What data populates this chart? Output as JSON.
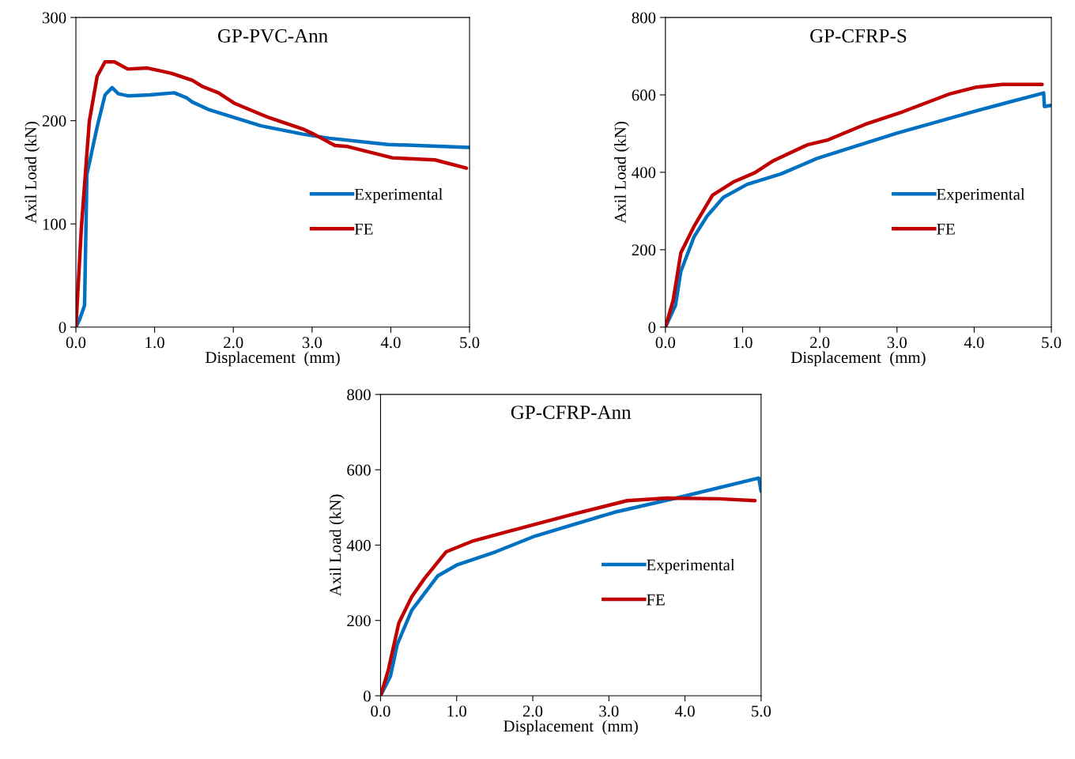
{
  "chart_data": [
    {
      "type": "line",
      "title": "GP-PVC-Ann",
      "xlabel": "Displacement  (mm)",
      "ylabel": "Axil Load (kN)",
      "xlim": [
        0,
        5
      ],
      "ylim": [
        0,
        300
      ],
      "xticks": [
        {
          "value": 0,
          "label": "0.0"
        },
        {
          "value": 1,
          "label": "1.0"
        },
        {
          "value": 2,
          "label": "2.0"
        },
        {
          "value": 3,
          "label": "3.0"
        },
        {
          "value": 4,
          "label": "4.0"
        },
        {
          "value": 5,
          "label": "5.0"
        }
      ],
      "yticks": [
        0,
        100,
        200,
        300
      ],
      "grid": false,
      "legend": "lower right",
      "marker": "none",
      "line_style": "solid",
      "series": [
        {
          "name": "Experimental",
          "color": "#0070c0",
          "x": [
            0,
            0.05,
            0.11,
            0.14,
            0.27,
            0.37,
            0.46,
            0.54,
            0.67,
            0.94,
            1.25,
            1.41,
            1.48,
            1.68,
            2.01,
            2.35,
            2.88,
            3.22,
            3.96,
            5.0
          ],
          "values": [
            0,
            8,
            21,
            148,
            194,
            225,
            232,
            226,
            224,
            225,
            227,
            222,
            218,
            211,
            203,
            195,
            187,
            183,
            177,
            174
          ]
        },
        {
          "name": "FE",
          "color": "#c00000",
          "x": [
            0,
            0.07,
            0.17,
            0.27,
            0.37,
            0.49,
            0.66,
            0.91,
            1.21,
            1.48,
            1.61,
            1.81,
            2.01,
            2.45,
            2.88,
            3.02,
            3.29,
            3.45,
            4.02,
            4.56,
            4.96
          ],
          "values": [
            0,
            97,
            199,
            243,
            257,
            257,
            250,
            251,
            246,
            239,
            233,
            227,
            217,
            203,
            192,
            187,
            176,
            175,
            164,
            162,
            154
          ]
        }
      ]
    },
    {
      "type": "line",
      "title": "GP-CFRP-S",
      "xlabel": "Displacement  (mm)",
      "ylabel": "Axil Load (kN)",
      "xlim": [
        0,
        5
      ],
      "ylim": [
        0,
        800
      ],
      "xticks": [
        {
          "value": 0,
          "label": "0.0"
        },
        {
          "value": 1,
          "label": "1.0"
        },
        {
          "value": 2,
          "label": "2.0"
        },
        {
          "value": 3,
          "label": "3.0"
        },
        {
          "value": 4,
          "label": "4.0"
        },
        {
          "value": 5,
          "label": "5.0"
        }
      ],
      "yticks": [
        0,
        200,
        400,
        600,
        800
      ],
      "grid": false,
      "legend": "lower right",
      "marker": "none",
      "line_style": "solid",
      "series": [
        {
          "name": "Experimental",
          "color": "#0070c0",
          "x": [
            0,
            0.13,
            0.2,
            0.37,
            0.54,
            0.75,
            1.06,
            1.5,
            1.98,
            3.0,
            4.03,
            4.9,
            4.91,
            5.0
          ],
          "values": [
            0,
            56,
            144,
            233,
            287,
            335,
            369,
            396,
            437,
            501,
            559,
            605,
            570,
            573
          ]
        },
        {
          "name": "FE",
          "color": "#c00000",
          "x": [
            0,
            0.1,
            0.2,
            0.37,
            0.61,
            0.89,
            1.16,
            1.4,
            1.84,
            2.11,
            2.59,
            3.07,
            3.69,
            4.03,
            4.37,
            4.88
          ],
          "values": [
            0,
            69,
            192,
            260,
            341,
            376,
            399,
            430,
            471,
            484,
            524,
            556,
            603,
            620,
            627,
            627
          ]
        }
      ]
    },
    {
      "type": "line",
      "title": "GP-CFRP-Ann",
      "xlabel": "Displacement  (mm)",
      "ylabel": "Axil Load (kN)",
      "xlim": [
        0,
        5
      ],
      "ylim": [
        0,
        800
      ],
      "xticks": [
        {
          "value": 0,
          "label": "0.0"
        },
        {
          "value": 1,
          "label": "1.0"
        },
        {
          "value": 2,
          "label": "2.0"
        },
        {
          "value": 3,
          "label": "3.0"
        },
        {
          "value": 4,
          "label": "4.0"
        },
        {
          "value": 5,
          "label": "5.0"
        }
      ],
      "yticks": [
        0,
        200,
        400,
        600,
        800
      ],
      "grid": false,
      "legend": "lower right",
      "marker": "none",
      "line_style": "solid",
      "series": [
        {
          "name": "Experimental",
          "color": "#0070c0",
          "x": [
            0,
            0.13,
            0.22,
            0.41,
            0.75,
            1.0,
            1.51,
            2.03,
            3.07,
            3.97,
            4.97,
            5.0
          ],
          "values": [
            0,
            52,
            137,
            227,
            318,
            347,
            382,
            424,
            487,
            529,
            578,
            543
          ]
        },
        {
          "name": "FE",
          "color": "#c00000",
          "x": [
            0,
            0.1,
            0.24,
            0.41,
            0.58,
            0.86,
            1.2,
            1.69,
            2.55,
            3.24,
            3.76,
            4.45,
            4.92
          ],
          "values": [
            0,
            67,
            193,
            263,
            312,
            382,
            410,
            437,
            483,
            518,
            525,
            523,
            518
          ]
        }
      ]
    }
  ]
}
